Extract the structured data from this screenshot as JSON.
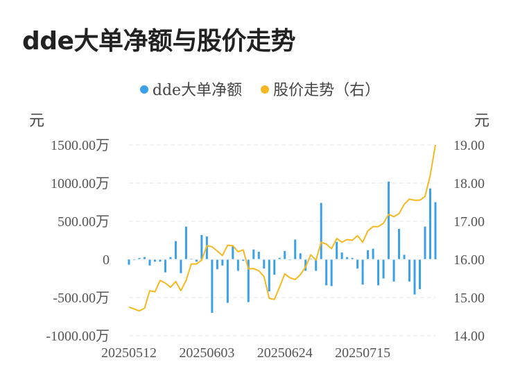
{
  "title": "dde大单净额与股价走势",
  "legend": [
    {
      "label": "dde大单净额",
      "color": "#3aa0e8"
    },
    {
      "label": "股价走势（右）",
      "color": "#f5b820"
    }
  ],
  "left_unit": "元",
  "right_unit": "元",
  "chart_data": {
    "type": "bar+line",
    "x_tick_labels": [
      "20250512",
      "20250603",
      "20250624",
      "20250715"
    ],
    "x_tick_indices": [
      0,
      15,
      30,
      45
    ],
    "left_axis": {
      "ticks": [
        1500,
        1000,
        500,
        0,
        -500,
        -1000
      ],
      "tick_labels": [
        "1500.00万",
        "1000.00万",
        "500.00万",
        "0",
        "-500.00万",
        "-1000.00万"
      ],
      "range": [
        -1000,
        1500
      ]
    },
    "right_axis": {
      "ticks": [
        19,
        18,
        17,
        16,
        15,
        14
      ],
      "tick_labels": [
        "19.00",
        "18.00",
        "17.00",
        "16.00",
        "15.00",
        "14.00"
      ],
      "range": [
        14,
        19
      ]
    },
    "grid": true,
    "series": [
      {
        "name": "dde大单净额",
        "type": "bar",
        "axis": "left",
        "values": [
          -70,
          -10,
          20,
          30,
          -80,
          -30,
          -30,
          -170,
          30,
          240,
          -180,
          430,
          10,
          -30,
          320,
          300,
          -700,
          -130,
          -80,
          -570,
          170,
          -150,
          -20,
          -560,
          130,
          100,
          -120,
          -420,
          -200,
          20,
          110,
          -10,
          260,
          80,
          -150,
          10,
          -150,
          740,
          -340,
          -350,
          230,
          90,
          30,
          20,
          -120,
          -330,
          120,
          140,
          -340,
          -250,
          1020,
          -290,
          400,
          60,
          -290,
          -460,
          -390,
          430,
          930,
          750
        ],
        "values_unit": "万元"
      },
      {
        "name": "股价走势（右）",
        "type": "line",
        "axis": "right",
        "values": [
          14.75,
          14.7,
          14.65,
          14.72,
          15.18,
          15.15,
          15.45,
          15.38,
          15.27,
          15.42,
          15.18,
          15.45,
          15.88,
          15.88,
          15.98,
          16.36,
          16.33,
          16.22,
          16.1,
          16.37,
          16.36,
          16.2,
          16.25,
          15.75,
          15.76,
          15.7,
          15.55,
          14.98,
          14.95,
          15.28,
          15.62,
          15.52,
          15.47,
          15.6,
          15.8,
          16.12,
          15.98,
          16.45,
          16.4,
          16.28,
          16.55,
          16.45,
          16.52,
          16.5,
          16.62,
          16.45,
          16.75,
          16.86,
          16.86,
          16.95,
          17.18,
          17.12,
          17.2,
          17.45,
          17.58,
          17.55,
          17.55,
          17.65,
          18.2,
          19.0
        ]
      }
    ]
  }
}
